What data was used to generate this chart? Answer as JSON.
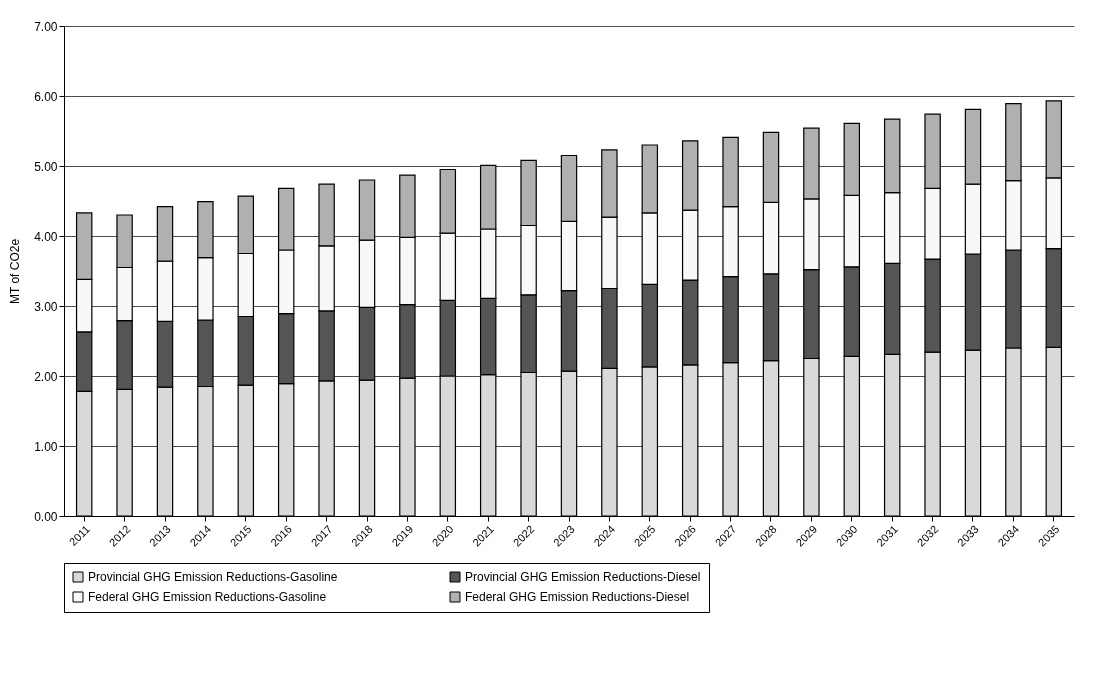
{
  "chart_data": {
    "type": "bar",
    "stacked": true,
    "ylabel": "MT of CO2e",
    "categories": [
      "2011",
      "2012",
      "2013",
      "2014",
      "2015",
      "2016",
      "2017",
      "2018",
      "2019",
      "2020",
      "2021",
      "2022",
      "2023",
      "2024",
      "2025",
      "2026",
      "2027",
      "2028",
      "2029",
      "2030",
      "2031",
      "2032",
      "2033",
      "2034",
      "2035"
    ],
    "series": [
      {
        "name": "Provincial GHG Emission Reductions-Gasoline",
        "color": "#d9d9d9",
        "values": [
          1.78,
          1.81,
          1.84,
          1.85,
          1.87,
          1.89,
          1.93,
          1.94,
          1.97,
          2.0,
          2.02,
          2.05,
          2.07,
          2.11,
          2.13,
          2.16,
          2.19,
          2.22,
          2.25,
          2.28,
          2.31,
          2.34,
          2.37,
          2.4,
          2.41
        ]
      },
      {
        "name": "Provincial GHG Emission Reductions-Diesel",
        "color": "#555555",
        "values": [
          0.85,
          0.98,
          0.94,
          0.95,
          0.98,
          1.0,
          1.0,
          1.04,
          1.05,
          1.08,
          1.09,
          1.11,
          1.15,
          1.14,
          1.18,
          1.21,
          1.23,
          1.24,
          1.27,
          1.28,
          1.3,
          1.33,
          1.37,
          1.4,
          1.41
        ]
      },
      {
        "name": "Federal GHG Emission Reductions-Gasoline",
        "color": "#f8f8f8",
        "values": [
          0.75,
          0.76,
          0.86,
          0.89,
          0.9,
          0.91,
          0.93,
          0.96,
          0.96,
          0.96,
          0.99,
          0.99,
          0.99,
          1.02,
          1.02,
          1.0,
          1.0,
          1.02,
          1.01,
          1.02,
          1.01,
          1.01,
          1.0,
          0.99,
          1.01
        ]
      },
      {
        "name": "Federal GHG Emission Reductions-Diesel",
        "color": "#b0b0b0",
        "values": [
          0.95,
          0.75,
          0.78,
          0.8,
          0.82,
          0.88,
          0.88,
          0.86,
          0.89,
          0.91,
          0.91,
          0.93,
          0.94,
          0.96,
          0.97,
          0.99,
          0.99,
          1.0,
          1.01,
          1.03,
          1.05,
          1.06,
          1.07,
          1.1,
          1.1
        ]
      }
    ],
    "ylim": [
      0,
      7
    ],
    "yticks": [
      {
        "value": 0,
        "label": "0.00"
      },
      {
        "value": 1,
        "label": "1.00"
      },
      {
        "value": 2,
        "label": "2.00"
      },
      {
        "value": 3,
        "label": "3.00"
      },
      {
        "value": 4,
        "label": "4.00"
      },
      {
        "value": 5,
        "label": "5.00"
      },
      {
        "value": 6,
        "label": "6.00"
      },
      {
        "value": 7,
        "label": "7.00"
      }
    ],
    "grid": "y",
    "legend": "bottom"
  }
}
